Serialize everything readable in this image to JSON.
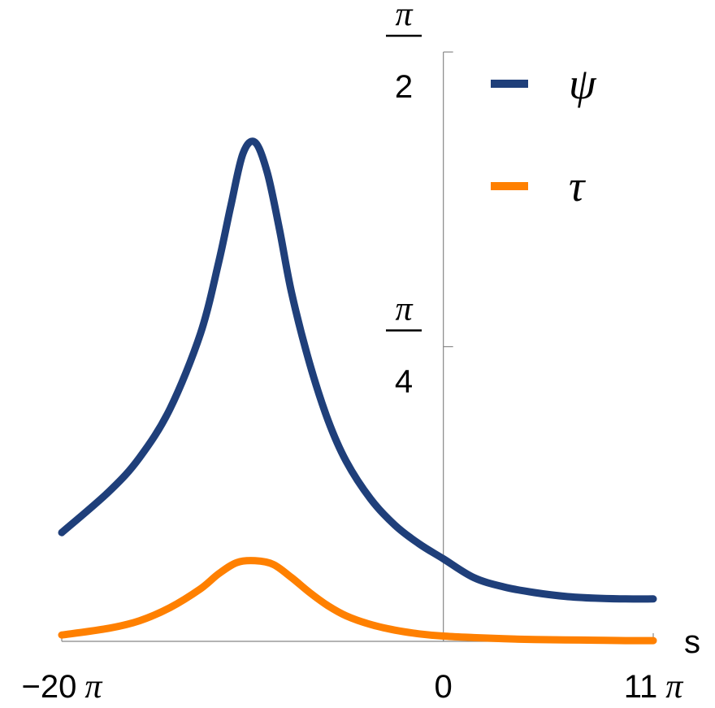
{
  "chart_data": {
    "type": "line",
    "xlabel": "s",
    "ylabel": "",
    "title": "",
    "xlim": [
      -62.83,
      34.56
    ],
    "ylim": [
      0,
      1.5708
    ],
    "x_ticks": [
      {
        "value": -62.83,
        "label_num": "−20",
        "label_sym": "π"
      },
      {
        "value": 0,
        "label_num": "0",
        "label_sym": ""
      },
      {
        "value": 34.56,
        "label_num": "11",
        "label_sym": "π"
      }
    ],
    "y_ticks": [
      {
        "value": 0.7854,
        "numerator": "π",
        "denominator": "4"
      },
      {
        "value": 1.5708,
        "numerator": "π",
        "denominator": "2"
      }
    ],
    "legend": {
      "placement": "top-right"
    },
    "series": [
      {
        "name": "ψ",
        "color": "#1f3f7a",
        "x": [
          -62.83,
          -55,
          -50,
          -45,
          -40,
          -37,
          -35,
          -33,
          -31,
          -29,
          -27,
          -25,
          -22,
          -19,
          -16,
          -12,
          -8,
          -4,
          0,
          5,
          10,
          15,
          20,
          25,
          30,
          34.56
        ],
        "y": [
          0.29,
          0.4,
          0.49,
          0.62,
          0.82,
          1.01,
          1.16,
          1.3,
          1.33,
          1.25,
          1.1,
          0.93,
          0.74,
          0.59,
          0.48,
          0.38,
          0.31,
          0.26,
          0.22,
          0.17,
          0.145,
          0.13,
          0.12,
          0.115,
          0.113,
          0.113
        ]
      },
      {
        "name": "τ",
        "color": "#ff8000",
        "x": [
          -62.83,
          -55,
          -50,
          -45,
          -40,
          -37,
          -34,
          -31,
          -28,
          -25,
          -22,
          -19,
          -16,
          -12,
          -8,
          -4,
          0,
          5,
          10,
          15,
          20,
          25,
          30,
          34.56
        ],
        "y": [
          0.017,
          0.035,
          0.055,
          0.09,
          0.14,
          0.18,
          0.21,
          0.215,
          0.205,
          0.17,
          0.13,
          0.095,
          0.068,
          0.045,
          0.03,
          0.02,
          0.014,
          0.01,
          0.007,
          0.005,
          0.004,
          0.003,
          0.002,
          0.002
        ]
      }
    ]
  }
}
